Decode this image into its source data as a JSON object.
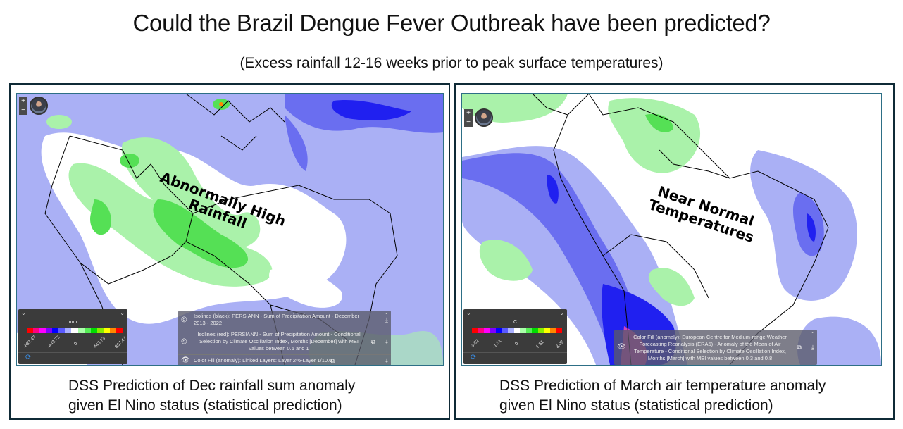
{
  "header": {
    "title": "Could the Brazil Dengue Fever Outbreak have been predicted?",
    "subtitle": "(Excess rainfall 12-16 weeks prior to peak surface temperatures)"
  },
  "panels": [
    {
      "map": {
        "zoom_in": "+",
        "zoom_out": "−",
        "annotation_line1": "Abnormally High",
        "annotation_line2": "Rainfall",
        "legend": {
          "unit": "mm",
          "ticks": [
            "-887.47",
            "-443.73",
            "0",
            "443.73",
            "887.47"
          ],
          "colors": [
            "#ff0000",
            "#ff0080",
            "#ff00ff",
            "#8000ff",
            "#0000ff",
            "#5a5aff",
            "#aab0ff",
            "#ffffff",
            "#aaffaa",
            "#55ee55",
            "#00dd00",
            "#88ee00",
            "#ffff00",
            "#ff8800",
            "#ff0000"
          ]
        },
        "layers": [
          {
            "visible": false,
            "label": "Isolines (black): PERSIANN - Sum of Precipitation Amount - December 2013 - 2022",
            "has_external_link": false
          },
          {
            "visible": false,
            "label": "Isolines (red): PERSIANN - Sum of Precipitation Amount - Conditional Selection by Climate Oscillation Index, Months [December] with MEI values between 0.5 and 1",
            "has_external_link": true
          },
          {
            "visible": true,
            "label": "Color Fill (anomaly): Linked Layers: Layer 2*6-Layer 1/10.0",
            "has_external_link": true
          }
        ]
      },
      "caption_line1": "DSS Prediction of Dec rainfall sum anomaly",
      "caption_line2": "given El Nino status (statistical prediction)"
    },
    {
      "map": {
        "zoom_in": "+",
        "zoom_out": "−",
        "annotation_line1": "Near Normal",
        "annotation_line2": "Temperatures",
        "legend": {
          "unit": "C",
          "ticks": [
            "-3.02",
            "-1.51",
            "0",
            "1.51",
            "3.02"
          ],
          "colors": [
            "#ff0000",
            "#ff0080",
            "#ff00ff",
            "#8000ff",
            "#0000ff",
            "#5a5aff",
            "#aab0ff",
            "#ffffff",
            "#aaffaa",
            "#55ee55",
            "#00dd00",
            "#88ee00",
            "#ffff00",
            "#ff8800",
            "#ff0000"
          ]
        },
        "layers": [
          {
            "visible": true,
            "label": "Color Fill (anomaly): European Centre for Medium-range Weather Forecasting Reanalysis (ERA5) - Anomaly of the Mean of Air Temperature - Conditional Selection by Climate Oscillation Index, Months [March] with MEI values between 0.3 and 0.8",
            "has_external_link": true
          }
        ]
      },
      "caption_line1": "DSS Prediction of March air temperature anomaly",
      "caption_line2": "given El Nino status (statistical prediction)"
    }
  ],
  "icons": {
    "eye_open": "👁",
    "eye_closed": "◎",
    "external_link": "⧉",
    "download": "⤓",
    "chevron": "⌄",
    "refresh": "⟳"
  }
}
